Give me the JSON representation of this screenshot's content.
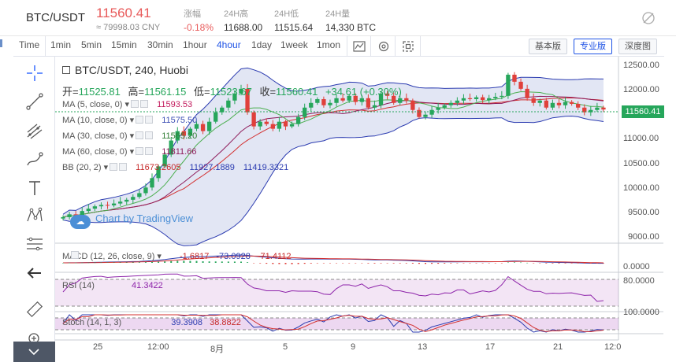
{
  "header": {
    "pair": "BTC/USDT",
    "price": "11560.41",
    "price_cny": "≈ 79998.03 CNY",
    "stats": [
      {
        "label": "涨幅",
        "value": "-0.18%",
        "red": true
      },
      {
        "label": "24H高",
        "value": "11688.00",
        "red": false
      },
      {
        "label": "24H低",
        "value": "11515.64",
        "red": false
      },
      {
        "label": "24H量",
        "value": "14,330 BTC",
        "red": false
      }
    ]
  },
  "toolbar": {
    "timeframes": [
      "Time",
      "1min",
      "5min",
      "15min",
      "30min",
      "1hour",
      "4hour",
      "1day",
      "1week",
      "1mon"
    ],
    "active_timeframe": "4hour",
    "modes": [
      "基本版",
      "专业版",
      "深度图"
    ],
    "active_mode": "专业版"
  },
  "legend": {
    "symbol": "BTC/USDT, 240, Huobi",
    "open_label": "开=",
    "open": "11525.81",
    "high_label": "高=",
    "high": "11561.15",
    "low_label": "低=",
    "low": "11523.67",
    "close_label": "收=",
    "close": "11560.41",
    "change": "+34.61 (+0.30%)",
    "indicators": [
      {
        "label": "MA (5, close, 0)",
        "values": [
          "11593.53"
        ],
        "color": "#c2185b"
      },
      {
        "label": "MA (10, close, 0)",
        "values": [
          "11575.50"
        ],
        "color": "#3f51b5"
      },
      {
        "label": "MA (30, close, 0)",
        "values": [
          "11565.20"
        ],
        "color": "#2e7d32"
      },
      {
        "label": "MA (60, close, 0)",
        "values": [
          "11811.66"
        ],
        "color": "#8e1b5a"
      },
      {
        "label": "BB (20, 2)",
        "values": [
          "11673.2605",
          "11927.1889",
          "11419.3321"
        ],
        "color": "#c62828"
      }
    ]
  },
  "watermark": "Chart by TradingView",
  "price_axis": [
    "12500.00",
    "12000.00",
    "11500.00",
    "11000.00",
    "10500.00",
    "10000.00",
    "9500.00",
    "9000.00"
  ],
  "last_price_tag": "11560.41",
  "time_axis": [
    "25",
    "12:00",
    "8月",
    "5",
    "9",
    "13",
    "17",
    "21",
    "12:0"
  ],
  "macd": {
    "label": "MACD (12, 26, close, 9)",
    "values": [
      "-1.6817",
      "-73.0928",
      "-71.4112"
    ],
    "axis": "0.0000"
  },
  "rsi": {
    "label": "RSI (14)",
    "value": "41.3422",
    "axis": "80.0000"
  },
  "stoch": {
    "label": "Stoch (14, 1, 3)",
    "values": [
      "39.3908",
      "38.8822"
    ],
    "axis": "100.0000"
  },
  "chart_data": {
    "type": "candlestick",
    "title": "BTC/USDT, 240, Huobi",
    "ylim": [
      8800,
      12600
    ],
    "closes": [
      9270,
      9330,
      9310,
      9400,
      9450,
      9500,
      9530,
      9520,
      9560,
      9600,
      9640,
      9700,
      9780,
      9900,
      10100,
      10350,
      10600,
      10900,
      11100,
      11000,
      11150,
      11250,
      11100,
      11300,
      11500,
      11600,
      11750,
      11900,
      12000,
      11500,
      11200,
      11300,
      11250,
      11150,
      11300,
      11200,
      11250,
      11400,
      11600,
      11700,
      11780,
      11650,
      11700,
      11800,
      11750,
      11850,
      11720,
      11800,
      11600,
      11650,
      11900,
      11850,
      11700,
      11800,
      11750,
      11550,
      11400,
      11450,
      11550,
      11600,
      11650,
      11700,
      11750,
      11800,
      11780,
      11820,
      11760,
      11800,
      11830,
      11850,
      12300,
      12150,
      12000,
      11800,
      11700,
      11750,
      11600,
      11700,
      11650,
      11720,
      11680,
      11600,
      11500,
      11550,
      11600,
      11560
    ]
  }
}
